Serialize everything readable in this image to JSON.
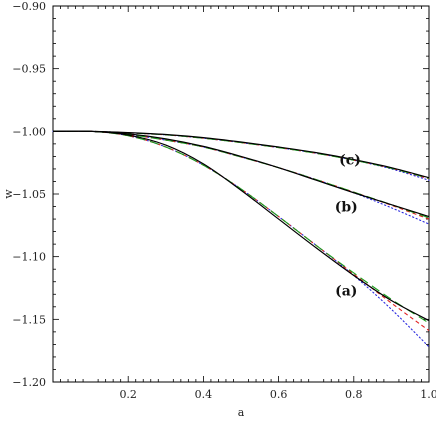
{
  "chart_data": {
    "type": "line",
    "title": "",
    "xlabel": "a",
    "ylabel": "w",
    "xlim": [
      0.0,
      1.0
    ],
    "ylim": [
      -1.2,
      -0.9
    ],
    "x_ticks": [
      0.2,
      0.4,
      0.6,
      0.8,
      1.0
    ],
    "x_tick_labels": [
      "0.2",
      "0.4",
      "0.6",
      "0.8",
      "1.0"
    ],
    "y_ticks": [
      -0.9,
      -0.95,
      -1.0,
      -1.05,
      -1.1,
      -1.15,
      -1.2
    ],
    "y_tick_labels": [
      "−0.90",
      "−0.95",
      "−1.00",
      "−1.05",
      "−1.10",
      "−1.15",
      "−1.20"
    ],
    "grid": false,
    "colors": {
      "black": "#000000",
      "green": "#1a9e1a",
      "red": "#e02020",
      "blue": "#2a2adf"
    },
    "series": [
      {
        "group": "c",
        "style": "solid",
        "color": "black",
        "x": [
          0.0,
          0.1,
          0.2,
          0.3,
          0.4,
          0.5,
          0.6,
          0.7,
          0.8,
          0.9,
          1.0
        ],
        "values": [
          -1.0,
          -1.0,
          -1.001,
          -1.0025,
          -1.005,
          -1.0085,
          -1.0125,
          -1.017,
          -1.0225,
          -1.029,
          -1.037
        ]
      },
      {
        "group": "c",
        "style": "long-dash",
        "color": "green",
        "x": [
          0.0,
          0.1,
          0.2,
          0.3,
          0.4,
          0.5,
          0.6,
          0.7,
          0.8,
          0.9,
          1.0
        ],
        "values": [
          -1.0,
          -1.0,
          -1.0012,
          -1.0028,
          -1.0055,
          -1.009,
          -1.013,
          -1.0175,
          -1.023,
          -1.0295,
          -1.0375
        ]
      },
      {
        "group": "c",
        "style": "dash",
        "color": "red",
        "x": [
          0.0,
          0.1,
          0.2,
          0.3,
          0.4,
          0.5,
          0.6,
          0.7,
          0.8,
          0.9,
          1.0
        ],
        "values": [
          -1.0,
          -1.0,
          -1.0012,
          -1.0028,
          -1.0055,
          -1.009,
          -1.013,
          -1.0175,
          -1.023,
          -1.0295,
          -1.0378
        ]
      },
      {
        "group": "c",
        "style": "dot",
        "color": "blue",
        "x": [
          0.0,
          0.1,
          0.2,
          0.3,
          0.4,
          0.5,
          0.6,
          0.7,
          0.8,
          0.9,
          1.0
        ],
        "values": [
          -1.0,
          -1.0,
          -1.0012,
          -1.0028,
          -1.0055,
          -1.009,
          -1.013,
          -1.0175,
          -1.023,
          -1.03,
          -1.039
        ]
      },
      {
        "group": "b",
        "style": "solid",
        "color": "black",
        "x": [
          0.0,
          0.1,
          0.2,
          0.3,
          0.4,
          0.5,
          0.6,
          0.7,
          0.8,
          0.9,
          1.0
        ],
        "values": [
          -1.0,
          -1.0,
          -1.002,
          -1.006,
          -1.012,
          -1.02,
          -1.029,
          -1.039,
          -1.049,
          -1.0585,
          -1.068
        ]
      },
      {
        "group": "b",
        "style": "long-dash",
        "color": "green",
        "x": [
          0.0,
          0.1,
          0.2,
          0.3,
          0.4,
          0.5,
          0.6,
          0.7,
          0.8,
          0.9,
          1.0
        ],
        "values": [
          -1.0,
          -1.0,
          -1.0025,
          -1.007,
          -1.0125,
          -1.0205,
          -1.029,
          -1.0385,
          -1.0485,
          -1.0585,
          -1.069
        ]
      },
      {
        "group": "b",
        "style": "dash",
        "color": "red",
        "x": [
          0.0,
          0.1,
          0.2,
          0.3,
          0.4,
          0.5,
          0.6,
          0.7,
          0.8,
          0.9,
          1.0
        ],
        "values": [
          -1.0,
          -1.0,
          -1.0025,
          -1.007,
          -1.0125,
          -1.0205,
          -1.029,
          -1.0385,
          -1.0485,
          -1.059,
          -1.07
        ]
      },
      {
        "group": "b",
        "style": "dot",
        "color": "blue",
        "x": [
          0.0,
          0.1,
          0.2,
          0.3,
          0.4,
          0.5,
          0.6,
          0.7,
          0.8,
          0.9,
          1.0
        ],
        "values": [
          -1.0,
          -1.0,
          -1.0025,
          -1.007,
          -1.0125,
          -1.0205,
          -1.029,
          -1.0385,
          -1.049,
          -1.061,
          -1.074
        ]
      },
      {
        "group": "a",
        "style": "solid",
        "color": "black",
        "x": [
          0.0,
          0.1,
          0.2,
          0.3,
          0.4,
          0.5,
          0.6,
          0.7,
          0.8,
          0.9,
          1.0
        ],
        "values": [
          -1.0,
          -1.0,
          -1.003,
          -1.011,
          -1.026,
          -1.047,
          -1.07,
          -1.093,
          -1.115,
          -1.135,
          -1.151
        ]
      },
      {
        "group": "a",
        "style": "long-dash",
        "color": "green",
        "x": [
          0.0,
          0.1,
          0.2,
          0.3,
          0.4,
          0.5,
          0.6,
          0.7,
          0.8,
          0.9,
          1.0
        ],
        "values": [
          -1.0,
          -1.0,
          -1.0035,
          -1.0125,
          -1.027,
          -1.046,
          -1.068,
          -1.091,
          -1.113,
          -1.134,
          -1.153
        ]
      },
      {
        "group": "a",
        "style": "dash",
        "color": "red",
        "x": [
          0.0,
          0.1,
          0.2,
          0.3,
          0.4,
          0.5,
          0.6,
          0.7,
          0.8,
          0.9,
          1.0
        ],
        "values": [
          -1.0,
          -1.0,
          -1.0035,
          -1.0125,
          -1.027,
          -1.046,
          -1.068,
          -1.091,
          -1.114,
          -1.137,
          -1.159
        ]
      },
      {
        "group": "a",
        "style": "dot",
        "color": "blue",
        "x": [
          0.0,
          0.1,
          0.2,
          0.3,
          0.4,
          0.5,
          0.6,
          0.7,
          0.8,
          0.9,
          1.0
        ],
        "values": [
          -1.0,
          -1.0,
          -1.0035,
          -1.0125,
          -1.027,
          -1.046,
          -1.068,
          -1.091,
          -1.115,
          -1.142,
          -1.172
        ]
      }
    ],
    "annotations": [
      {
        "text": "(c)",
        "x": 0.79,
        "y": -1.0265
      },
      {
        "text": "(b)",
        "x": 0.78,
        "y": -1.064
      },
      {
        "text": "(a)",
        "x": 0.78,
        "y": -1.131
      }
    ]
  }
}
